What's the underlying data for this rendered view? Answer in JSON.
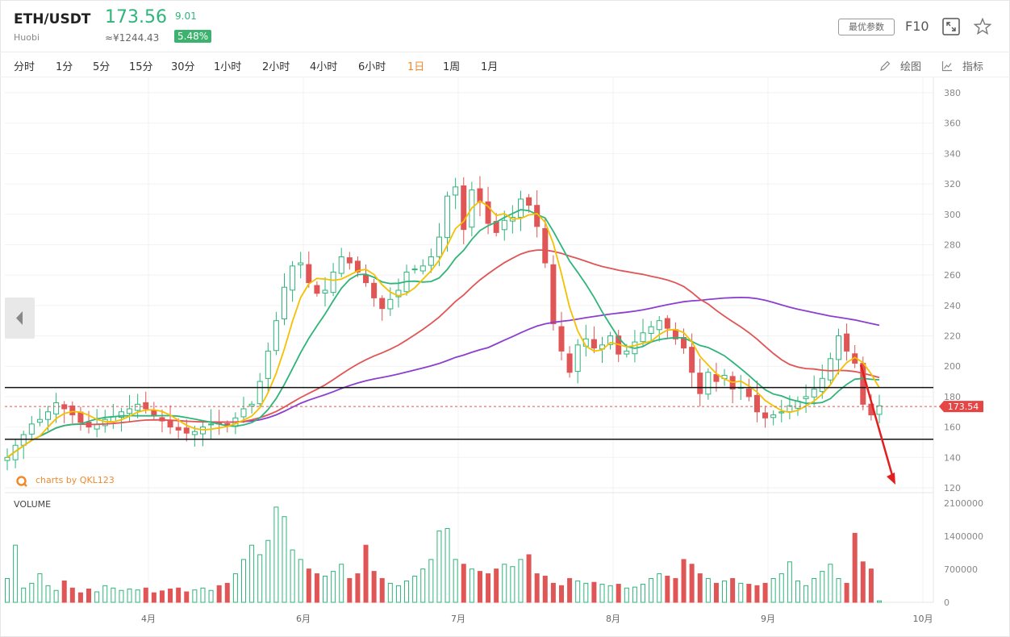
{
  "header": {
    "pair": "ETH/USDT",
    "exchange": "Huobi",
    "price": "173.56",
    "cny_price": "≈¥1244.43",
    "change": "9.01",
    "change_pct": "5.48%",
    "best_params_label": "最优参数",
    "f10_label": "F10"
  },
  "toolbar": {
    "timeframes": [
      "分时",
      "1分",
      "5分",
      "15分",
      "30分",
      "1小时",
      "2小时",
      "4小时",
      "6小时",
      "1日",
      "1周",
      "1月"
    ],
    "active_timeframe": "1日",
    "draw_label": "绘图",
    "indicator_label": "指标"
  },
  "watermark": "charts by QKL123",
  "chart_data": {
    "type": "candlestick",
    "title": "ETH/USDT",
    "x_ticks": [
      "4月",
      "6月",
      "7月",
      "8月",
      "9月",
      "10月"
    ],
    "price_axis": {
      "ticks": [
        380,
        360,
        340,
        320,
        300,
        280,
        260,
        240,
        220,
        200,
        180,
        160,
        140,
        120
      ],
      "ylim": [
        110,
        385
      ]
    },
    "current_price_label": "173.54",
    "current_price": 173.54,
    "support_resistance": [
      186,
      152
    ],
    "trend_arrow": {
      "from": 201,
      "to": 120
    },
    "ma_colors": {
      "ma5": "#f5c000",
      "ma10": "#2eb57a",
      "ma30": "#e05555",
      "ma60": "#8a3fd1"
    },
    "up_color": "#2eb57a",
    "down_color": "#e05555",
    "volume_label": "VOLUME",
    "volume_axis": {
      "ticks": [
        "2100000",
        "1400000",
        "700000",
        "0"
      ],
      "max": 2100000
    },
    "closes": [
      140,
      148,
      155,
      162,
      165,
      170,
      176,
      172,
      168,
      163,
      160,
      162,
      165,
      167,
      170,
      172,
      175,
      172,
      168,
      164,
      160,
      158,
      156,
      157,
      160,
      162,
      162,
      161,
      166,
      172,
      175,
      190,
      210,
      230,
      252,
      266,
      268,
      255,
      248,
      250,
      262,
      272,
      268,
      262,
      255,
      245,
      238,
      244,
      250,
      262,
      264,
      266,
      272,
      285,
      312,
      318,
      290,
      316,
      308,
      294,
      288,
      296,
      298,
      310,
      306,
      292,
      268,
      228,
      210,
      196,
      214,
      218,
      212,
      214,
      220,
      208,
      210,
      216,
      222,
      226,
      230,
      225,
      218,
      212,
      196,
      182,
      196,
      190,
      194,
      185,
      186,
      180,
      170,
      166,
      168,
      170,
      174,
      177,
      180,
      185,
      192,
      205,
      220,
      210,
      202,
      175,
      168,
      174
    ],
    "volumes": [
      500000,
      1200000,
      300000,
      400000,
      600000,
      350000,
      250000,
      450000,
      300000,
      200000,
      280000,
      220000,
      350000,
      300000,
      250000,
      280000,
      260000,
      300000,
      200000,
      240000,
      280000,
      300000,
      220000,
      260000,
      300000,
      250000,
      350000,
      400000,
      600000,
      900000,
      1200000,
      1000000,
      1300000,
      2000000,
      1800000,
      1100000,
      900000,
      700000,
      600000,
      550000,
      650000,
      800000,
      500000,
      600000,
      1200000,
      650000,
      500000,
      400000,
      350000,
      450000,
      550000,
      700000,
      900000,
      1500000,
      1550000,
      900000,
      800000,
      700000,
      650000,
      600000,
      700000,
      800000,
      750000,
      900000,
      1000000,
      600000,
      550000,
      400000,
      350000,
      500000,
      450000,
      400000,
      420000,
      380000,
      350000,
      380000,
      300000,
      320000,
      380000,
      500000,
      600000,
      550000,
      500000,
      900000,
      800000,
      600000,
      500000,
      400000,
      450000,
      500000,
      400000,
      380000,
      350000,
      400000,
      500000,
      600000,
      850000,
      450000,
      350000,
      500000,
      650000,
      800000,
      500000,
      400000,
      1450000,
      850000,
      700000,
      30000
    ]
  }
}
